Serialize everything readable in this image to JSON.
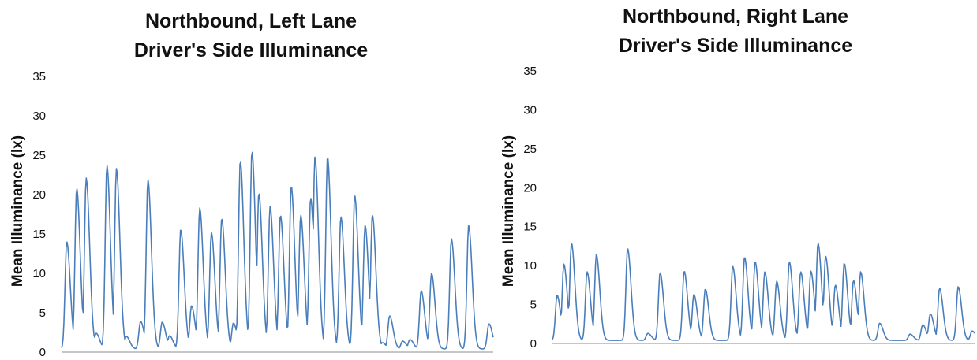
{
  "chart_data": [
    {
      "type": "line",
      "title": "Northbound, Left Lane\nDriver's Side Illuminance",
      "xlabel": "",
      "ylabel": "Mean Illuminance (lx)",
      "ylim": [
        0,
        35
      ],
      "yticks": [
        0,
        5,
        10,
        15,
        20,
        25,
        30,
        35
      ],
      "grid": false,
      "legend": "none",
      "series_color": "#4a7ebb",
      "series": [
        {
          "baseline": 0.4,
          "peaks": [
            {
              "x": 0.012,
              "y": 14.0
            },
            {
              "x": 0.035,
              "y": 20.8
            },
            {
              "x": 0.057,
              "y": 22.1
            },
            {
              "x": 0.08,
              "y": 2.4
            },
            {
              "x": 0.105,
              "y": 23.7
            },
            {
              "x": 0.127,
              "y": 23.3
            },
            {
              "x": 0.15,
              "y": 2.0
            },
            {
              "x": 0.183,
              "y": 3.9
            },
            {
              "x": 0.2,
              "y": 21.9
            },
            {
              "x": 0.233,
              "y": 3.8
            },
            {
              "x": 0.25,
              "y": 2.1
            },
            {
              "x": 0.276,
              "y": 15.6
            },
            {
              "x": 0.301,
              "y": 5.9
            },
            {
              "x": 0.32,
              "y": 18.3
            },
            {
              "x": 0.347,
              "y": 15.2
            },
            {
              "x": 0.371,
              "y": 17.0
            },
            {
              "x": 0.398,
              "y": 3.7
            },
            {
              "x": 0.414,
              "y": 24.3
            },
            {
              "x": 0.441,
              "y": 25.5
            },
            {
              "x": 0.457,
              "y": 20.2
            },
            {
              "x": 0.483,
              "y": 18.5
            },
            {
              "x": 0.507,
              "y": 17.4
            },
            {
              "x": 0.532,
              "y": 21.1
            },
            {
              "x": 0.554,
              "y": 17.4
            },
            {
              "x": 0.577,
              "y": 19.6
            },
            {
              "x": 0.587,
              "y": 24.8
            },
            {
              "x": 0.616,
              "y": 24.8
            },
            {
              "x": 0.647,
              "y": 17.2
            },
            {
              "x": 0.679,
              "y": 19.9
            },
            {
              "x": 0.703,
              "y": 16.1
            },
            {
              "x": 0.72,
              "y": 17.4
            },
            {
              "x": 0.743,
              "y": 1.2
            },
            {
              "x": 0.76,
              "y": 4.6
            },
            {
              "x": 0.79,
              "y": 1.4
            },
            {
              "x": 0.807,
              "y": 1.6
            },
            {
              "x": 0.833,
              "y": 7.8
            },
            {
              "x": 0.857,
              "y": 10.0
            },
            {
              "x": 0.903,
              "y": 14.4
            },
            {
              "x": 0.943,
              "y": 16.1
            },
            {
              "x": 0.99,
              "y": 3.6
            }
          ]
        }
      ]
    },
    {
      "type": "line",
      "title": "Northbound, Right Lane\nDriver's Side Illuminance",
      "xlabel": "",
      "ylabel": "Mean Illuminance (lx)",
      "ylim": [
        0,
        35
      ],
      "yticks": [
        0,
        5,
        10,
        15,
        20,
        25,
        30,
        35
      ],
      "grid": false,
      "legend": "none",
      "series_color": "#4a7ebb",
      "series": [
        {
          "baseline": 0.4,
          "peaks": [
            {
              "x": 0.011,
              "y": 6.2
            },
            {
              "x": 0.027,
              "y": 10.2
            },
            {
              "x": 0.045,
              "y": 12.9
            },
            {
              "x": 0.06,
              "y": 0.7
            },
            {
              "x": 0.082,
              "y": 9.2
            },
            {
              "x": 0.104,
              "y": 11.4
            },
            {
              "x": 0.178,
              "y": 12.2
            },
            {
              "x": 0.226,
              "y": 1.3
            },
            {
              "x": 0.255,
              "y": 9.1
            },
            {
              "x": 0.312,
              "y": 9.3
            },
            {
              "x": 0.335,
              "y": 6.3
            },
            {
              "x": 0.362,
              "y": 7.0
            },
            {
              "x": 0.427,
              "y": 9.9
            },
            {
              "x": 0.455,
              "y": 11.1
            },
            {
              "x": 0.48,
              "y": 10.5
            },
            {
              "x": 0.503,
              "y": 9.2
            },
            {
              "x": 0.531,
              "y": 8.0
            },
            {
              "x": 0.561,
              "y": 10.5
            },
            {
              "x": 0.588,
              "y": 9.2
            },
            {
              "x": 0.612,
              "y": 9.3
            },
            {
              "x": 0.629,
              "y": 12.9
            },
            {
              "x": 0.647,
              "y": 11.2
            },
            {
              "x": 0.67,
              "y": 7.5
            },
            {
              "x": 0.691,
              "y": 10.3
            },
            {
              "x": 0.713,
              "y": 8.1
            },
            {
              "x": 0.73,
              "y": 9.2
            },
            {
              "x": 0.775,
              "y": 2.6
            },
            {
              "x": 0.847,
              "y": 1.2
            },
            {
              "x": 0.877,
              "y": 2.4
            },
            {
              "x": 0.895,
              "y": 3.8
            },
            {
              "x": 0.917,
              "y": 7.1
            },
            {
              "x": 0.961,
              "y": 7.3
            },
            {
              "x": 0.994,
              "y": 1.6
            }
          ]
        }
      ]
    }
  ]
}
